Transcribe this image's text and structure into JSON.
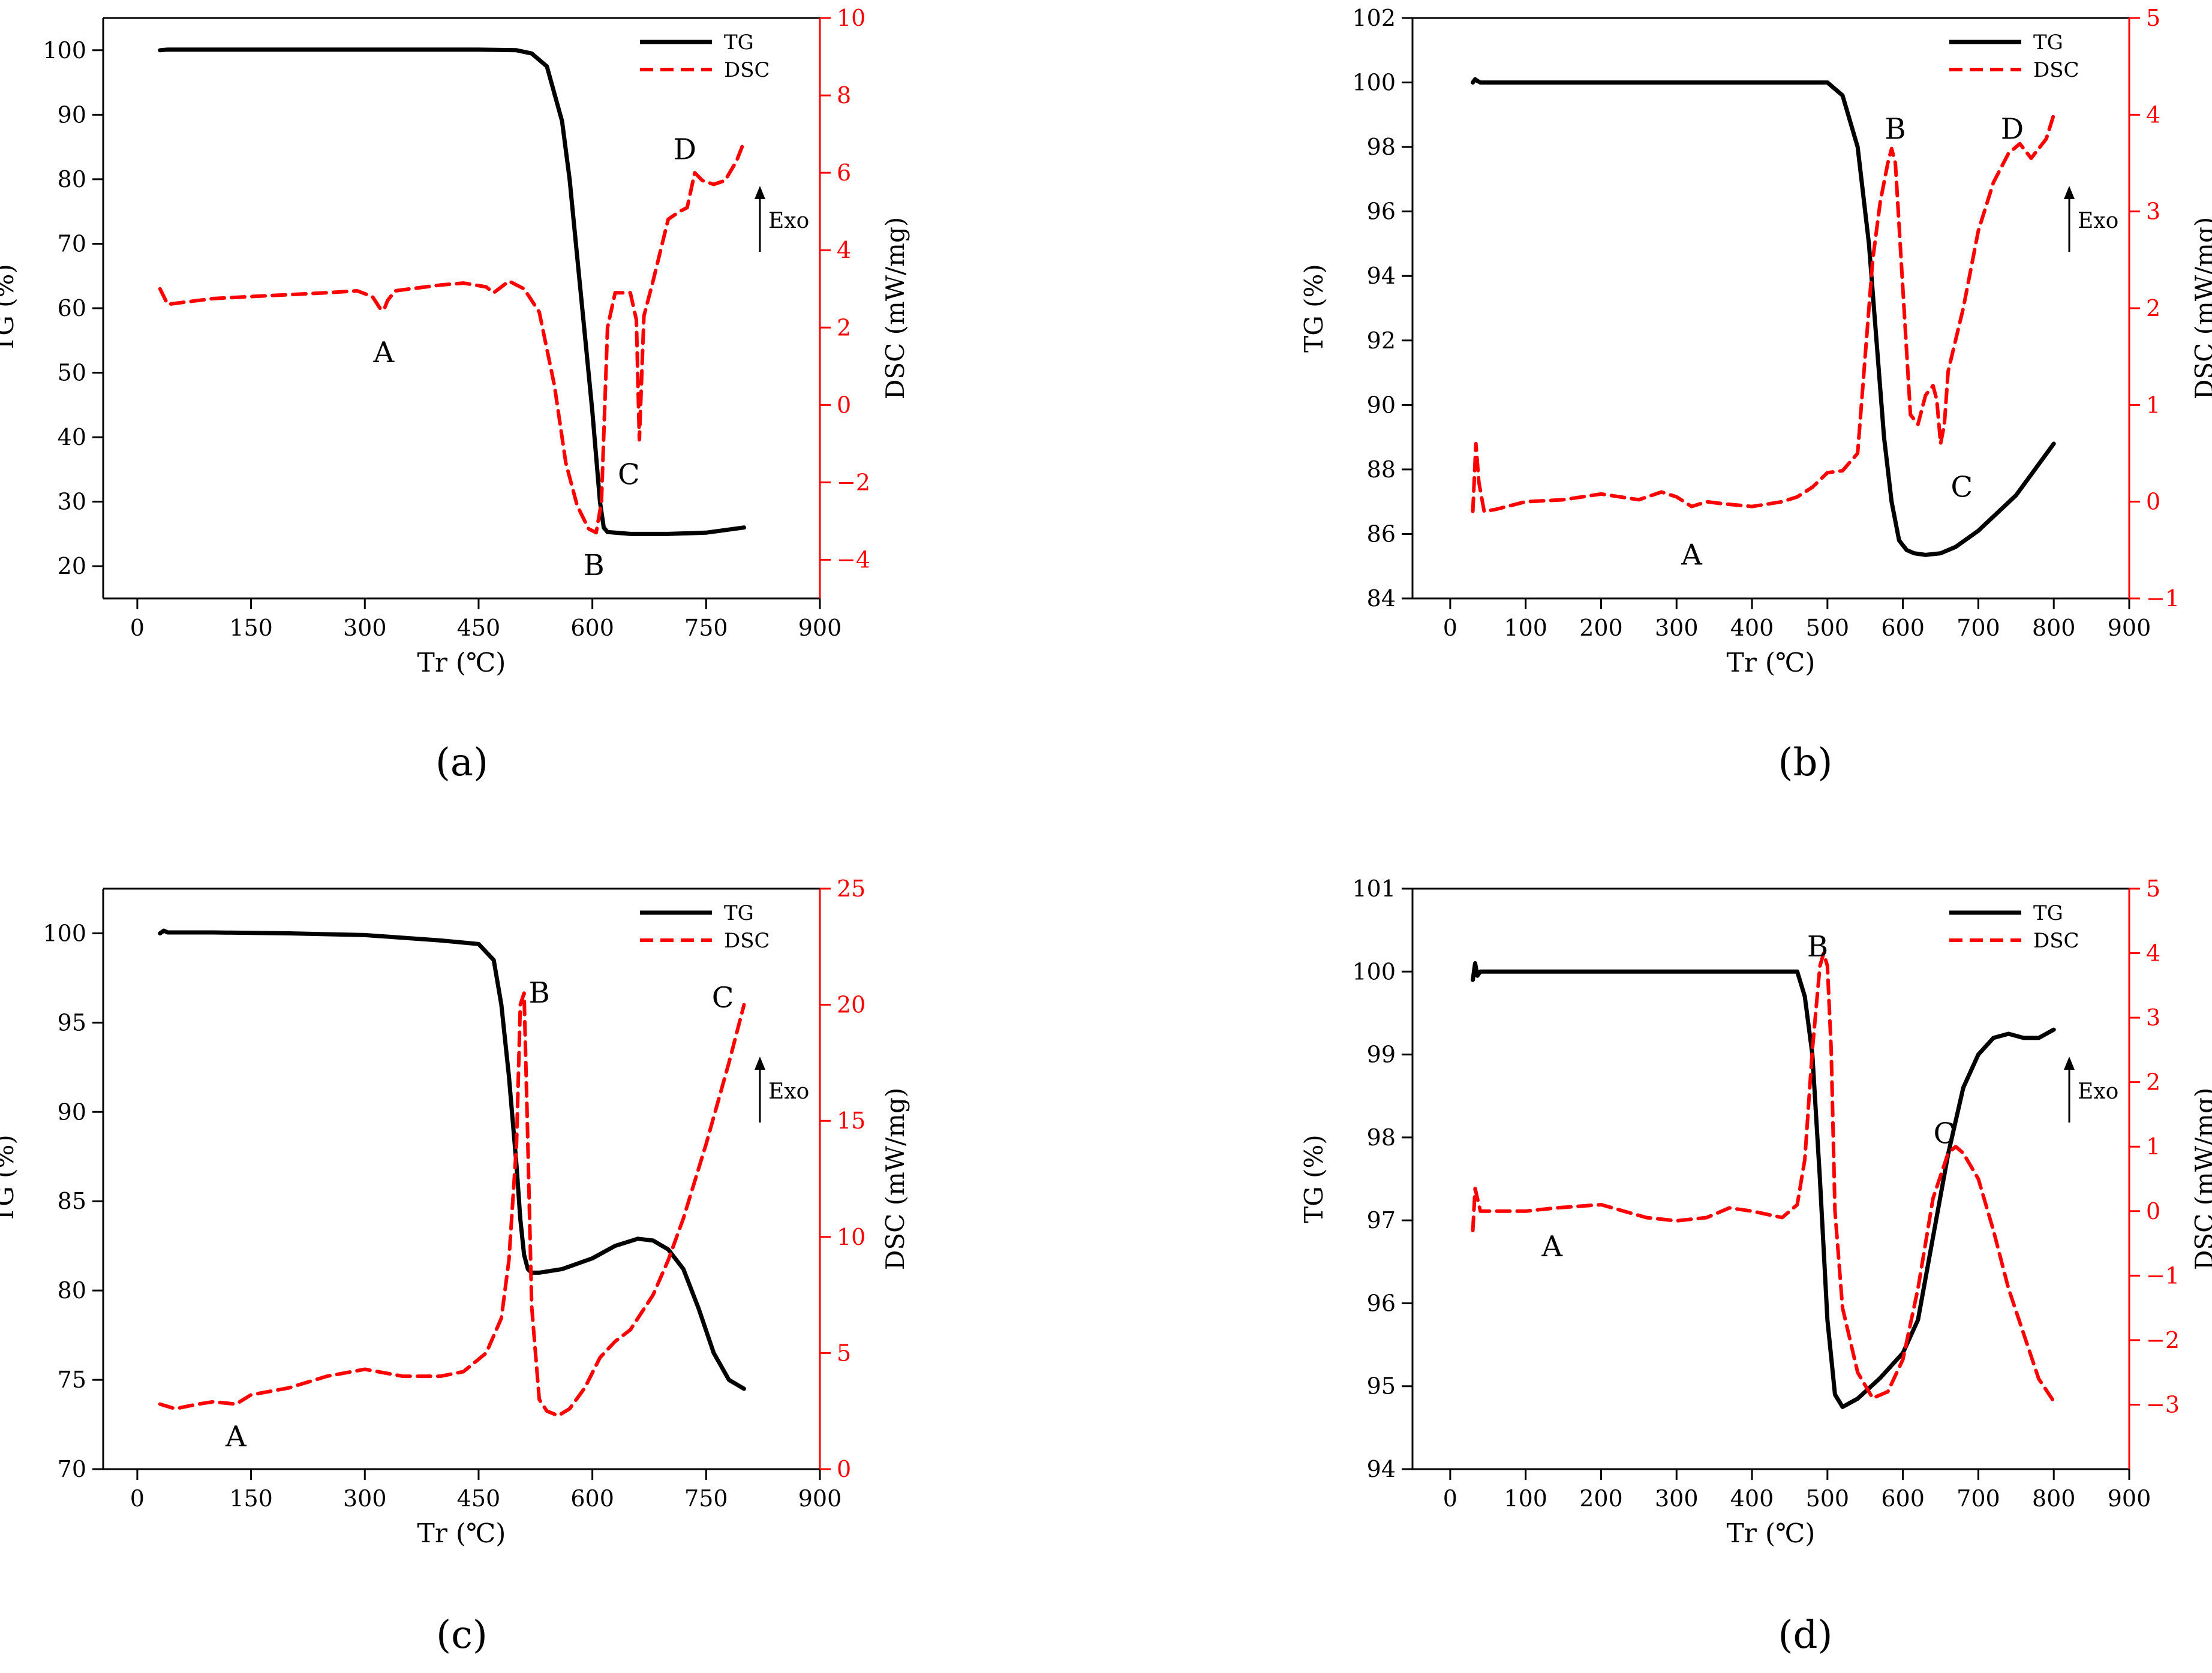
{
  "colors": {
    "tg": "#000000",
    "dsc": "#ff0000",
    "axis": "#000000"
  },
  "legend": {
    "tg_label": "TG",
    "dsc_label": "DSC"
  },
  "exo_label": "Exo",
  "chart_data": [
    {
      "panel": "(a)",
      "type": "line",
      "xlabel": "Tr (℃)",
      "ylabel": "TG (%)",
      "y2label": "DSC (mW/mg)",
      "xlim": [
        -45,
        900
      ],
      "xticks": [
        0,
        150,
        300,
        450,
        600,
        750,
        900
      ],
      "ylim": [
        15,
        105
      ],
      "yticks": [
        20,
        30,
        40,
        50,
        60,
        70,
        80,
        90,
        100
      ],
      "y2lim": [
        -5,
        10
      ],
      "y2ticks": [
        -4,
        -2,
        0,
        2,
        4,
        6,
        8,
        10
      ],
      "series": [
        {
          "name": "TG",
          "axis": "left",
          "x": [
            30,
            40,
            100,
            200,
            300,
            400,
            450,
            500,
            520,
            540,
            560,
            570,
            580,
            590,
            600,
            610,
            615,
            620,
            650,
            700,
            750,
            800
          ],
          "y": [
            100,
            100.1,
            100.1,
            100.1,
            100.1,
            100.1,
            100.1,
            100,
            99.5,
            97.5,
            89,
            80,
            68,
            56,
            44,
            30,
            26,
            25.3,
            25,
            25,
            25.2,
            26
          ]
        },
        {
          "name": "DSC",
          "axis": "right",
          "x": [
            30,
            40,
            60,
            100,
            150,
            200,
            250,
            290,
            310,
            320,
            325,
            330,
            340,
            360,
            400,
            430,
            460,
            470,
            490,
            510,
            530,
            550,
            565,
            580,
            595,
            605,
            612,
            620,
            630,
            650,
            658,
            662,
            668,
            680,
            700,
            715,
            725,
            735,
            745,
            760,
            775,
            790,
            800
          ],
          "y": [
            3,
            2.6,
            2.65,
            2.75,
            2.8,
            2.85,
            2.9,
            2.95,
            2.8,
            2.5,
            2.45,
            2.7,
            2.95,
            3,
            3.1,
            3.15,
            3.05,
            2.9,
            3.2,
            3,
            2.4,
            0.5,
            -1.5,
            -2.6,
            -3.2,
            -3.3,
            -2.5,
            2,
            2.9,
            2.9,
            2.2,
            -0.9,
            2.3,
            3.2,
            4.8,
            5,
            5.1,
            6,
            5.8,
            5.7,
            5.8,
            6.3,
            6.8
          ]
        }
      ],
      "annotations": [
        {
          "text": "A",
          "x": 325,
          "y": 1.35
        },
        {
          "text": "B",
          "x": 602,
          "y": -4.15
        },
        {
          "text": "C",
          "x": 648,
          "y": -1.8
        },
        {
          "text": "D",
          "x": 722,
          "y": 6.6
        }
      ]
    },
    {
      "panel": "(b)",
      "type": "line",
      "xlabel": "Tr (℃)",
      "ylabel": "TG (%)",
      "y2label": "DSC (mW/mg)",
      "xlim": [
        -50,
        900
      ],
      "xticks": [
        0,
        100,
        200,
        300,
        400,
        500,
        600,
        700,
        800,
        900
      ],
      "ylim": [
        84,
        102
      ],
      "yticks": [
        84,
        86,
        88,
        90,
        92,
        94,
        96,
        98,
        100,
        102
      ],
      "y2lim": [
        -1,
        5
      ],
      "y2ticks": [
        -1,
        0,
        1,
        2,
        3,
        4,
        5
      ],
      "series": [
        {
          "name": "TG",
          "axis": "left",
          "x": [
            30,
            33,
            36,
            40,
            50,
            100,
            200,
            300,
            400,
            500,
            520,
            540,
            555,
            565,
            575,
            585,
            595,
            605,
            615,
            630,
            650,
            670,
            700,
            750,
            800
          ],
          "y": [
            100,
            100.1,
            100.05,
            100,
            100,
            100,
            100,
            100,
            100,
            100,
            99.6,
            98,
            95,
            92,
            89,
            87,
            85.8,
            85.5,
            85.4,
            85.35,
            85.4,
            85.6,
            86.1,
            87.2,
            88.8
          ]
        },
        {
          "name": "DSC",
          "axis": "right",
          "x": [
            30,
            34,
            38,
            45,
            60,
            100,
            150,
            200,
            250,
            280,
            300,
            320,
            340,
            360,
            400,
            440,
            460,
            480,
            500,
            520,
            540,
            550,
            560,
            570,
            580,
            585,
            590,
            600,
            610,
            620,
            630,
            640,
            645,
            650,
            655,
            660,
            680,
            700,
            720,
            740,
            755,
            770,
            790,
            800
          ],
          "y": [
            -0.1,
            0.6,
            0.2,
            -0.1,
            -0.08,
            0,
            0.02,
            0.08,
            0.02,
            0.1,
            0.05,
            -0.05,
            0,
            -0.02,
            -0.05,
            0,
            0.05,
            0.15,
            0.3,
            0.32,
            0.5,
            1.5,
            2.5,
            3.1,
            3.5,
            3.65,
            3.5,
            2.2,
            0.9,
            0.8,
            1.1,
            1.2,
            1.05,
            0.6,
            0.8,
            1.35,
            2,
            2.8,
            3.3,
            3.6,
            3.7,
            3.55,
            3.75,
            4
          ]
        }
      ],
      "annotations": [
        {
          "text": "A",
          "x": 320,
          "y": -0.55
        },
        {
          "text": "B",
          "x": 590,
          "y": 3.85
        },
        {
          "text": "C",
          "x": 678,
          "y": 0.15
        },
        {
          "text": "D",
          "x": 745,
          "y": 3.85
        }
      ]
    },
    {
      "panel": "(c)",
      "type": "line",
      "xlabel": "Tr (℃)",
      "ylabel": "TG (%)",
      "y2label": "DSC (mW/mg)",
      "xlim": [
        -45,
        900
      ],
      "xticks": [
        0,
        150,
        300,
        450,
        600,
        750,
        900
      ],
      "ylim": [
        70,
        102.5
      ],
      "yticks": [
        70,
        75,
        80,
        85,
        90,
        95,
        100
      ],
      "y2lim": [
        0,
        25
      ],
      "y2ticks": [
        0,
        5,
        10,
        15,
        20,
        25
      ],
      "series": [
        {
          "name": "TG",
          "axis": "left",
          "x": [
            30,
            35,
            40,
            100,
            200,
            300,
            400,
            450,
            470,
            480,
            490,
            500,
            505,
            510,
            515,
            520,
            530,
            560,
            600,
            630,
            660,
            680,
            700,
            720,
            740,
            760,
            780,
            800
          ],
          "y": [
            100,
            100.15,
            100.05,
            100.05,
            100,
            99.9,
            99.6,
            99.4,
            98.5,
            96,
            92,
            87,
            84,
            82,
            81.2,
            81,
            81,
            81.2,
            81.8,
            82.5,
            82.9,
            82.8,
            82.3,
            81.2,
            79,
            76.5,
            75,
            74.5
          ]
        },
        {
          "name": "DSC",
          "axis": "right",
          "x": [
            30,
            50,
            80,
            100,
            130,
            150,
            200,
            250,
            300,
            350,
            400,
            430,
            460,
            480,
            490,
            500,
            505,
            510,
            515,
            520,
            530,
            540,
            555,
            570,
            590,
            610,
            630,
            650,
            680,
            700,
            720,
            750,
            780,
            800
          ],
          "y": [
            2.8,
            2.6,
            2.8,
            2.9,
            2.8,
            3.2,
            3.5,
            4,
            4.3,
            4,
            4,
            4.2,
            5,
            6.5,
            9,
            14,
            20,
            20.5,
            14,
            7,
            3,
            2.5,
            2.3,
            2.6,
            3.5,
            4.8,
            5.5,
            6,
            7.5,
            9,
            10.8,
            14,
            17.5,
            20
          ]
        }
      ],
      "annotations": [
        {
          "text": "A",
          "x": 130,
          "y": 1.4
        },
        {
          "text": "B",
          "x": 530,
          "y": 20.5
        },
        {
          "text": "C",
          "x": 772,
          "y": 20.3
        }
      ]
    },
    {
      "panel": "(d)",
      "type": "line",
      "xlabel": "Tr (℃)",
      "ylabel": "TG (%)",
      "y2label": "DSC (mW/mg)",
      "xlim": [
        -50,
        900
      ],
      "xticks": [
        0,
        100,
        200,
        300,
        400,
        500,
        600,
        700,
        800,
        900
      ],
      "ylim": [
        94,
        101
      ],
      "yticks": [
        94,
        95,
        96,
        97,
        98,
        99,
        100,
        101
      ],
      "y2lim": [
        -4,
        5
      ],
      "y2ticks": [
        -3,
        -2,
        -1,
        0,
        1,
        2,
        3,
        4,
        5
      ],
      "series": [
        {
          "name": "TG",
          "axis": "left",
          "x": [
            30,
            33,
            36,
            40,
            50,
            100,
            200,
            300,
            350,
            400,
            450,
            460,
            470,
            480,
            490,
            500,
            510,
            520,
            540,
            570,
            600,
            620,
            640,
            660,
            680,
            700,
            720,
            740,
            760,
            780,
            800
          ],
          "y": [
            99.9,
            100.1,
            99.95,
            100,
            100,
            100,
            100,
            100,
            100,
            100,
            100,
            100,
            99.7,
            99,
            97.5,
            95.8,
            94.9,
            94.75,
            94.85,
            95.1,
            95.4,
            95.8,
            96.8,
            97.8,
            98.6,
            99,
            99.2,
            99.25,
            99.2,
            99.2,
            99.3
          ]
        },
        {
          "name": "DSC",
          "axis": "right",
          "x": [
            30,
            33,
            36,
            40,
            60,
            100,
            140,
            200,
            260,
            300,
            340,
            370,
            400,
            440,
            460,
            470,
            480,
            490,
            495,
            500,
            505,
            510,
            520,
            540,
            560,
            580,
            600,
            620,
            640,
            660,
            670,
            680,
            700,
            720,
            740,
            760,
            780,
            800
          ],
          "y": [
            -0.3,
            0.35,
            0.2,
            0,
            0,
            0,
            0.05,
            0.1,
            -0.1,
            -0.15,
            -0.1,
            0.05,
            0,
            -0.1,
            0.1,
            0.8,
            2.5,
            3.8,
            4,
            3.8,
            2.5,
            0,
            -1.5,
            -2.5,
            -2.9,
            -2.8,
            -2.3,
            -1.2,
            0.2,
            0.9,
            1,
            0.9,
            0.5,
            -0.3,
            -1.2,
            -1.9,
            -2.6,
            -2.95
          ]
        }
      ],
      "annotations": [
        {
          "text": "A",
          "x": 135,
          "y": -0.55
        },
        {
          "text": "B",
          "x": 487,
          "y": 4.1
        },
        {
          "text": "C",
          "x": 655,
          "y": 1.2
        }
      ]
    }
  ]
}
